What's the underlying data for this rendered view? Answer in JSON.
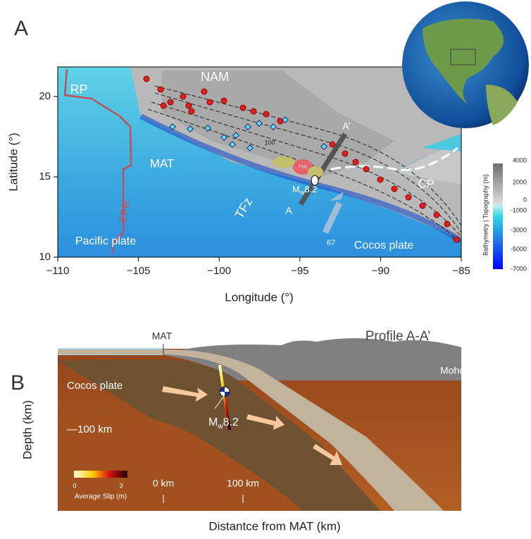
{
  "panel_a": {
    "label": "A",
    "x_axis_label": "Longitude (°)",
    "y_axis_label": "Latitude (°)",
    "x_ticks": [
      "−110",
      "−105",
      "−100",
      "−95",
      "−90",
      "−85"
    ],
    "y_ticks": [
      "10",
      "15",
      "20"
    ],
    "map_labels": [
      "NAM",
      "RP",
      "MAT",
      "TFz",
      "EPR",
      "CP",
      "Pacific plate",
      "Cocos plate",
      "A",
      "A’",
      "67",
      "100",
      "TSG"
    ],
    "event": {
      "prefix": "M",
      "sub": "w",
      "value": "8.2"
    },
    "colorbar": {
      "title": "Bathymetry | Topography (m)",
      "ticks": [
        "4000",
        "2000",
        "0",
        "-1000",
        "-3000",
        "-5000",
        "-7000"
      ]
    }
  },
  "panel_b": {
    "label": "B",
    "title": "Profile A-A’",
    "x_axis_label": "Distantce from MAT (km)",
    "y_axis_label": "Depth (km)",
    "labels": [
      "MAT",
      "Moho",
      "Cocos plate",
      "—100 km"
    ],
    "event": {
      "prefix": "M",
      "sub": "w",
      "value": "8.2"
    },
    "distance_ticks": [
      "0 km",
      "100 km"
    ],
    "slip_colorbar": {
      "title": "Average Slip (m)",
      "ticks": [
        "0",
        "3"
      ]
    }
  }
}
